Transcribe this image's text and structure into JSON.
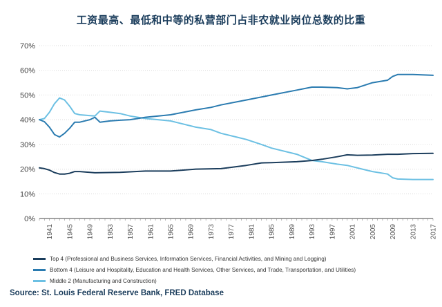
{
  "title": "工资最高、最低和中等的私营部门占非农就业岗位总数的比重",
  "source": "Source: St. Louis Federal Reserve Bank, FRED Database",
  "colors": {
    "top4": "#1b3d5c",
    "bottom4": "#2a7bb0",
    "middle2": "#6cc0e3",
    "grid": "#d9d9d9",
    "axis": "#444444"
  },
  "chart_data": {
    "type": "line",
    "title": "工资最高、最低和中等的私营部门占非农就业岗位总数的比重",
    "xlabel": "",
    "ylabel": "",
    "xlim": [
      1939,
      2017
    ],
    "ylim": [
      0,
      70
    ],
    "y_ticks": [
      0,
      10,
      20,
      30,
      40,
      50,
      60,
      70
    ],
    "y_tick_labels": [
      "0%",
      "10%",
      "20%",
      "30%",
      "40%",
      "50%",
      "60%",
      "70%"
    ],
    "x_ticks": [
      1941,
      1945,
      1949,
      1953,
      1957,
      1961,
      1965,
      1969,
      1973,
      1977,
      1981,
      1985,
      1989,
      1993,
      1997,
      2001,
      2005,
      2009,
      2013,
      2017
    ],
    "x_tick_labels": [
      "1941",
      "1945",
      "1949",
      "1953",
      "1957",
      "1961",
      "1965",
      "1969",
      "1973",
      "1977",
      "1981",
      "1985",
      "1989",
      "1993",
      "1997",
      "2001",
      "2005",
      "2009",
      "2013",
      "2017"
    ],
    "legend_position": "bottom",
    "series": [
      {
        "key": "top4",
        "name": "Top 4 (Professional and Business Services, Information Services, Financial Activities, and Mining and Logging)",
        "x": [
          1939,
          1940,
          1941,
          1942,
          1943,
          1944,
          1945,
          1946,
          1947,
          1950,
          1955,
          1960,
          1965,
          1970,
          1975,
          1980,
          1983,
          1985,
          1990,
          1993,
          1995,
          1998,
          2000,
          2002,
          2005,
          2008,
          2010,
          2013,
          2017
        ],
        "values": [
          20.5,
          20.2,
          19.6,
          18.6,
          18.0,
          18.0,
          18.3,
          19.0,
          19.0,
          18.5,
          18.7,
          19.2,
          19.2,
          20.0,
          20.2,
          21.5,
          22.5,
          22.6,
          23.0,
          23.5,
          24.0,
          25.0,
          25.8,
          25.6,
          25.7,
          26.0,
          26.0,
          26.3,
          26.4
        ]
      },
      {
        "key": "bottom4",
        "name": "Bottom 4 (Leisure and Hospitality, Education and Health Services, Other Services, and Trade, Transportation, and Utilities)",
        "x": [
          1939,
          1940,
          1941,
          1942,
          1943,
          1944,
          1945,
          1946,
          1947,
          1949,
          1950,
          1951,
          1953,
          1955,
          1957,
          1960,
          1965,
          1970,
          1973,
          1975,
          1980,
          1985,
          1990,
          1993,
          1995,
          1998,
          2000,
          2002,
          2005,
          2008,
          2009,
          2010,
          2013,
          2017
        ],
        "values": [
          40.0,
          39.2,
          37.0,
          34.0,
          33.0,
          34.5,
          36.5,
          39.0,
          39.0,
          40.0,
          41.0,
          39.0,
          39.5,
          39.8,
          40.0,
          41.0,
          42.0,
          44.0,
          45.0,
          46.0,
          48.0,
          50.0,
          52.0,
          53.2,
          53.2,
          53.0,
          52.5,
          53.0,
          55.0,
          56.0,
          57.5,
          58.3,
          58.3,
          58.0
        ]
      },
      {
        "key": "middle2",
        "name": "Middle 2 (Manufacturing and Construction)",
        "x": [
          1939,
          1940,
          1941,
          1942,
          1943,
          1944,
          1945,
          1946,
          1947,
          1950,
          1951,
          1953,
          1955,
          1957,
          1960,
          1965,
          1970,
          1973,
          1975,
          1978,
          1980,
          1983,
          1985,
          1990,
          1993,
          1995,
          1998,
          2000,
          2003,
          2005,
          2008,
          2009,
          2010,
          2013,
          2017
        ],
        "values": [
          40.0,
          40.5,
          43.0,
          46.5,
          48.8,
          48.0,
          45.5,
          42.5,
          42.0,
          41.5,
          43.5,
          43.0,
          42.5,
          41.5,
          40.5,
          39.5,
          37.0,
          36.0,
          34.5,
          33.0,
          32.0,
          30.0,
          28.5,
          26.0,
          23.5,
          23.0,
          22.0,
          21.5,
          20.0,
          19.0,
          18.0,
          16.5,
          16.0,
          15.8,
          15.8
        ]
      }
    ]
  }
}
